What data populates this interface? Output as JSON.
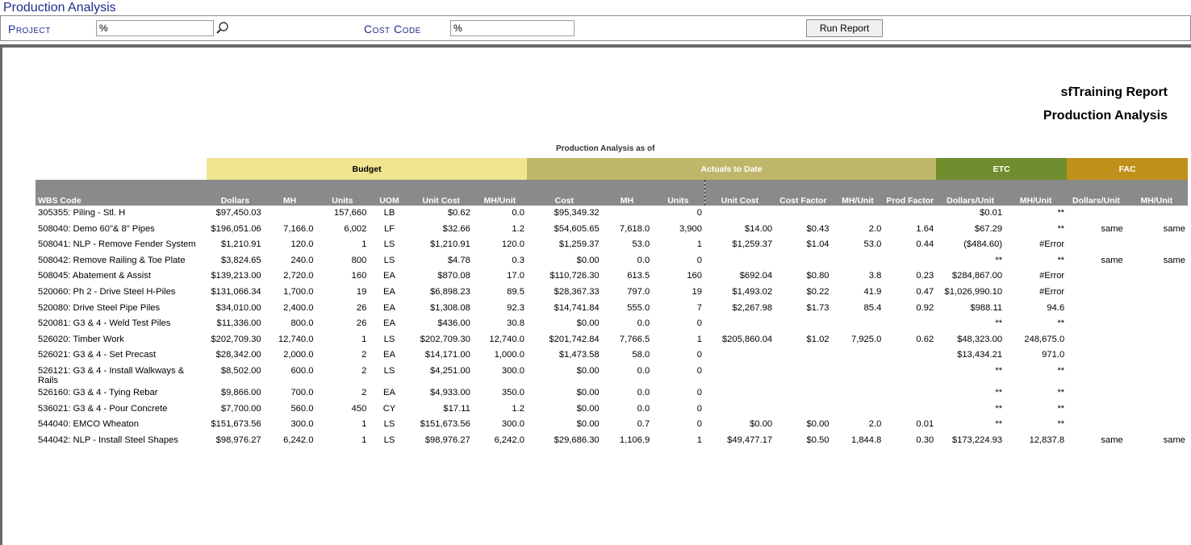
{
  "app": {
    "title": "Production Analysis"
  },
  "filters": {
    "project_label": "Project",
    "project_value": "%",
    "cost_code_label": "Cost Code",
    "cost_code_value": "%",
    "run_label": "Run Report"
  },
  "report": {
    "title": "sfTraining Report",
    "subtitle": "Production Analysis",
    "as_of": "Production Analysis  as of"
  },
  "groups": {
    "budget": "Budget",
    "actuals": "Actuals to Date",
    "etc": "ETC",
    "fac": "FAC"
  },
  "columns": [
    "WBS Code",
    "Dollars",
    "MH",
    "Units",
    "UOM",
    "Unit Cost",
    "MH/Unit",
    "Cost",
    "MH",
    "Units",
    "Unit Cost",
    "Cost Factor",
    "MH/Unit",
    "Prod Factor",
    "Dollars/Unit",
    "MH/Unit",
    "Dollars/Unit",
    "MH/Unit"
  ],
  "rows": [
    [
      "305355: Piling - Stl. H",
      "$97,450.03",
      "",
      "157,660",
      "LB",
      "$0.62",
      "0.0",
      "$95,349.32",
      "",
      "0",
      "",
      "",
      "",
      "",
      "$0.01",
      "**",
      "",
      ""
    ],
    [
      "508040: Demo 60\"& 8\" Pipes",
      "$196,051.06",
      "7,166.0",
      "6,002",
      "LF",
      "$32.66",
      "1.2",
      "$54,605.65",
      "7,618.0",
      "3,900",
      "$14.00",
      "$0.43",
      "2.0",
      "1.64",
      "$67.29",
      "**",
      "same",
      "same"
    ],
    [
      "508041: NLP - Remove Fender System",
      "$1,210.91",
      "120.0",
      "1",
      "LS",
      "$1,210.91",
      "120.0",
      "$1,259.37",
      "53.0",
      "1",
      "$1,259.37",
      "$1.04",
      "53.0",
      "0.44",
      "($484.60)",
      "#Error",
      "",
      ""
    ],
    [
      "508042: Remove Railing & Toe Plate",
      "$3,824.65",
      "240.0",
      "800",
      "LS",
      "$4.78",
      "0.3",
      "$0.00",
      "0.0",
      "0",
      "",
      "",
      "",
      "",
      "**",
      "**",
      "same",
      "same"
    ],
    [
      "508045: Abatement & Assist",
      "$139,213.00",
      "2,720.0",
      "160",
      "EA",
      "$870.08",
      "17.0",
      "$110,726.30",
      "613.5",
      "160",
      "$692.04",
      "$0.80",
      "3.8",
      "0.23",
      "$284,867.00",
      "#Error",
      "",
      ""
    ],
    [
      "520060: Ph 2 - Drive Steel H-Piles",
      "$131,066.34",
      "1,700.0",
      "19",
      "EA",
      "$6,898.23",
      "89.5",
      "$28,367.33",
      "797.0",
      "19",
      "$1,493.02",
      "$0.22",
      "41.9",
      "0.47",
      "$1,026,990.10",
      "#Error",
      "",
      ""
    ],
    [
      "520080: Drive Steel Pipe Piles",
      "$34,010.00",
      "2,400.0",
      "26",
      "EA",
      "$1,308.08",
      "92.3",
      "$14,741.84",
      "555.0",
      "7",
      "$2,267.98",
      "$1.73",
      "85.4",
      "0.92",
      "$988.11",
      "94.6",
      "",
      ""
    ],
    [
      "520081: G3 & 4 - Weld Test Piles",
      "$11,336.00",
      "800.0",
      "26",
      "EA",
      "$436.00",
      "30.8",
      "$0.00",
      "0.0",
      "0",
      "",
      "",
      "",
      "",
      "**",
      "**",
      "",
      ""
    ],
    [
      "526020: Timber Work",
      "$202,709.30",
      "12,740.0",
      "1",
      "LS",
      "$202,709.30",
      "12,740.0",
      "$201,742.84",
      "7,766.5",
      "1",
      "$205,860.04",
      "$1.02",
      "7,925.0",
      "0.62",
      "$48,323.00",
      "248,675.0",
      "",
      ""
    ],
    [
      "526021: G3 & 4 - Set Precast",
      "$28,342.00",
      "2,000.0",
      "2",
      "EA",
      "$14,171.00",
      "1,000.0",
      "$1,473.58",
      "58.0",
      "0",
      "",
      "",
      "",
      "",
      "$13,434.21",
      "971.0",
      "",
      ""
    ],
    [
      "526121: G3 & 4 - Install Walkways & Rails",
      "$8,502.00",
      "600.0",
      "2",
      "LS",
      "$4,251.00",
      "300.0",
      "$0.00",
      "0.0",
      "0",
      "",
      "",
      "",
      "",
      "**",
      "**",
      "",
      ""
    ],
    [
      "526160: G3 & 4 - Tying Rebar",
      "$9,866.00",
      "700.0",
      "2",
      "EA",
      "$4,933.00",
      "350.0",
      "$0.00",
      "0.0",
      "0",
      "",
      "",
      "",
      "",
      "**",
      "**",
      "",
      ""
    ],
    [
      "536021: G3 & 4 - Pour Concrete",
      "$7,700.00",
      "560.0",
      "450",
      "CY",
      "$17.11",
      "1.2",
      "$0.00",
      "0.0",
      "0",
      "",
      "",
      "",
      "",
      "**",
      "**",
      "",
      ""
    ],
    [
      "544040: EMCO Wheaton",
      "$151,673.56",
      "300.0",
      "1",
      "LS",
      "$151,673.56",
      "300.0",
      "$0.00",
      "0.7",
      "0",
      "$0.00",
      "$0.00",
      "2.0",
      "0.01",
      "**",
      "**",
      "",
      ""
    ],
    [
      "544042: NLP - Install Steel Shapes",
      "$98,976.27",
      "6,242.0",
      "1",
      "LS",
      "$98,976.27",
      "6,242.0",
      "$29,686.30",
      "1,106.9",
      "1",
      "$49,477.17",
      "$0.50",
      "1,844.8",
      "0.30",
      "$173,224.93",
      "12,837.8",
      "same",
      "same"
    ]
  ]
}
